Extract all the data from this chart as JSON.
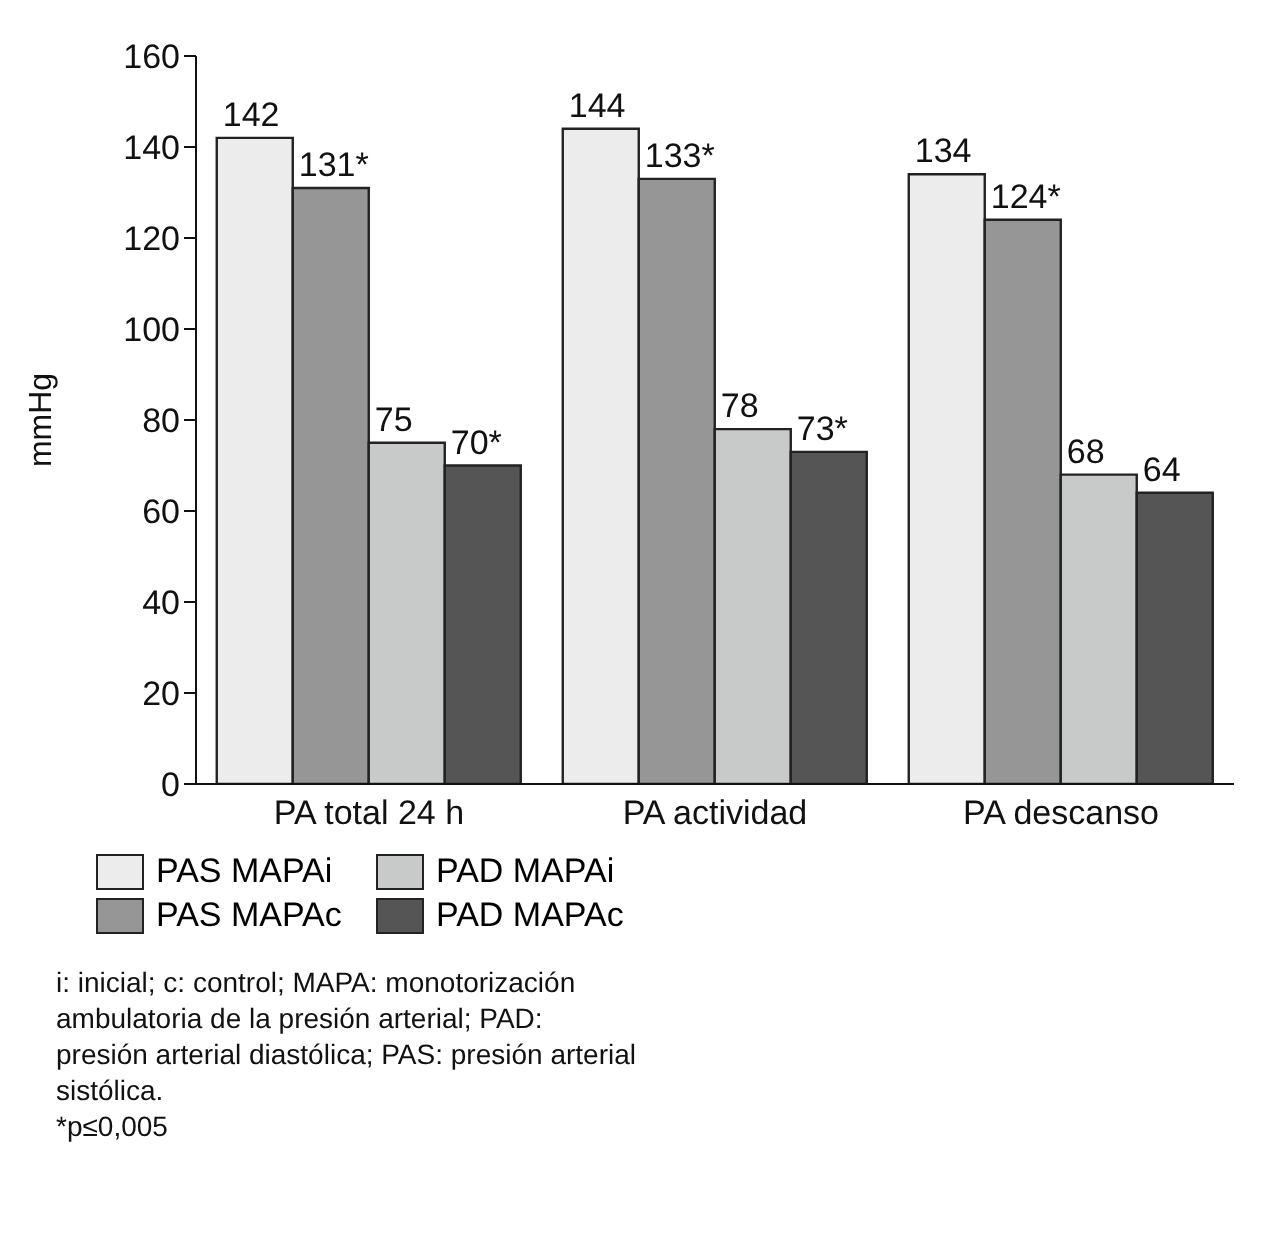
{
  "chart_data": {
    "type": "bar",
    "ylabel": "mmHg",
    "categories": [
      "PA total 24 h",
      "PA actividad",
      "PA descanso"
    ],
    "series": [
      {
        "name": "PAS MAPAi",
        "color": "#ececec",
        "values": [
          142,
          144,
          134
        ],
        "value_labels": [
          "142",
          "144",
          "134"
        ]
      },
      {
        "name": "PAS MAPAc",
        "color": "#969696",
        "values": [
          131,
          133,
          124
        ],
        "value_labels": [
          "131*",
          "133*",
          "124*"
        ]
      },
      {
        "name": "PAD MAPAi",
        "color": "#c8cac9",
        "values": [
          75,
          78,
          68
        ],
        "value_labels": [
          "75",
          "78",
          "68"
        ]
      },
      {
        "name": "PAD MAPAc",
        "color": "#555555",
        "values": [
          70,
          73,
          64
        ],
        "value_labels": [
          "70*",
          "73*",
          "64"
        ]
      }
    ],
    "ylim": [
      0,
      160
    ],
    "yticks": [
      0,
      20,
      40,
      60,
      80,
      100,
      120,
      140,
      160
    ],
    "grid": false,
    "legend": "bottom",
    "annotations": [
      "i: inicial; c: control; MAPA: monotorización ambulatoria de la presión arterial; PAD: presión arterial diastólica; PAS: presión arterial sistólica.",
      "*p≤0,005"
    ]
  }
}
